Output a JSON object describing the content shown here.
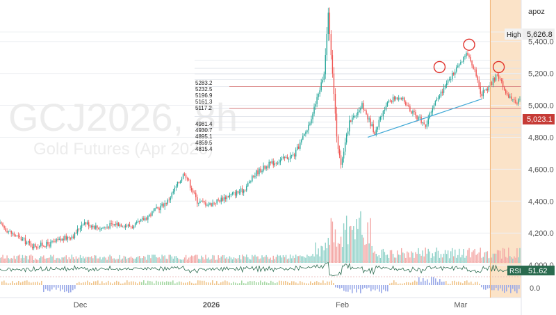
{
  "chart_data": {
    "type": "candlestick",
    "symbol_watermark": "GCJ2026, 8h",
    "name_watermark": "Gold Futures (Apr 2026)",
    "currency_label": "apoz",
    "y_axis": {
      "ticks": [
        "5,400.0",
        "5,200.0",
        "5,000.0",
        "4,800.0",
        "4,600.0",
        "4,400.0",
        "4,200.0",
        "4,000.0"
      ],
      "tick_values": [
        5400,
        5200,
        5000,
        4800,
        4600,
        4400,
        4200,
        4000
      ],
      "ylim": [
        3970,
        5660
      ]
    },
    "x_axis": {
      "ticks": [
        "Dec",
        "2026",
        "Feb",
        "Mar"
      ],
      "range_days": [
        "2025-11-12",
        "2026-03-15"
      ]
    },
    "labels": {
      "high_label": "High",
      "high_value": "5,626.8",
      "last_value": "5,023.1",
      "rsi_label": "RSI",
      "rsi_value": "51.62",
      "osc_zero": "0.0"
    },
    "level_values_upper": [
      "5283.2",
      "5232.5",
      "5196.9",
      "5161.3",
      "5117.2"
    ],
    "level_values_lower": [
      "4981.4",
      "4930.7",
      "4895.1",
      "4859.5",
      "4815.4"
    ],
    "price_path": [
      [
        "2025-11-12",
        4260
      ],
      [
        "2025-11-15",
        4200
      ],
      [
        "2025-11-20",
        4120
      ],
      [
        "2025-11-24",
        4130
      ],
      [
        "2025-11-30",
        4190
      ],
      [
        "2025-12-02",
        4270
      ],
      [
        "2025-12-06",
        4230
      ],
      [
        "2025-12-10",
        4260
      ],
      [
        "2025-12-14",
        4240
      ],
      [
        "2025-12-18",
        4320
      ],
      [
        "2025-12-22",
        4400
      ],
      [
        "2025-12-26",
        4580
      ],
      [
        "2025-12-29",
        4400
      ],
      [
        "2026-01-01",
        4380
      ],
      [
        "2026-01-05",
        4430
      ],
      [
        "2026-01-09",
        4470
      ],
      [
        "2026-01-12",
        4580
      ],
      [
        "2026-01-15",
        4630
      ],
      [
        "2026-01-18",
        4660
      ],
      [
        "2026-01-21",
        4690
      ],
      [
        "2026-01-24",
        4850
      ],
      [
        "2026-01-26",
        5010
      ],
      [
        "2026-01-28",
        5200
      ],
      [
        "2026-01-29",
        5590
      ],
      [
        "2026-01-30",
        5200
      ],
      [
        "2026-01-31",
        4800
      ],
      [
        "2026-02-01",
        4620
      ],
      [
        "2026-02-03",
        4900
      ],
      [
        "2026-02-06",
        5000
      ],
      [
        "2026-02-09",
        4830
      ],
      [
        "2026-02-12",
        5020
      ],
      [
        "2026-02-15",
        5060
      ],
      [
        "2026-02-18",
        4950
      ],
      [
        "2026-02-21",
        4880
      ],
      [
        "2026-02-24",
        5050
      ],
      [
        "2026-02-27",
        5180
      ],
      [
        "2026-03-01",
        5250
      ],
      [
        "2026-03-03",
        5330
      ],
      [
        "2026-03-05",
        5200
      ],
      [
        "2026-03-06",
        5060
      ],
      [
        "2026-03-08",
        5120
      ],
      [
        "2026-03-10",
        5190
      ],
      [
        "2026-03-12",
        5080
      ],
      [
        "2026-03-14",
        5023
      ]
    ],
    "trendline": [
      [
        "2026-02-07",
        4800
      ],
      [
        "2026-03-06",
        5040
      ]
    ],
    "circle_markers": [
      [
        "2026-02-24",
        5240
      ],
      [
        "2026-03-03",
        5380
      ],
      [
        "2026-03-10",
        5240
      ]
    ],
    "highlight_zone": [
      "2026-03-08",
      "2026-03-15"
    ],
    "rsi_range": [
      20,
      80
    ],
    "colors": {
      "up": "#26a69a",
      "down": "#ef5350",
      "trendline": "#3fa8d6",
      "circle": "#e0312b",
      "zone": "#fbe3c8",
      "zone_edge": "#f0b070",
      "level_lines": "#d66a6a",
      "rsi_line": "#2a6b4f",
      "last_badge": "#c63b36"
    }
  }
}
